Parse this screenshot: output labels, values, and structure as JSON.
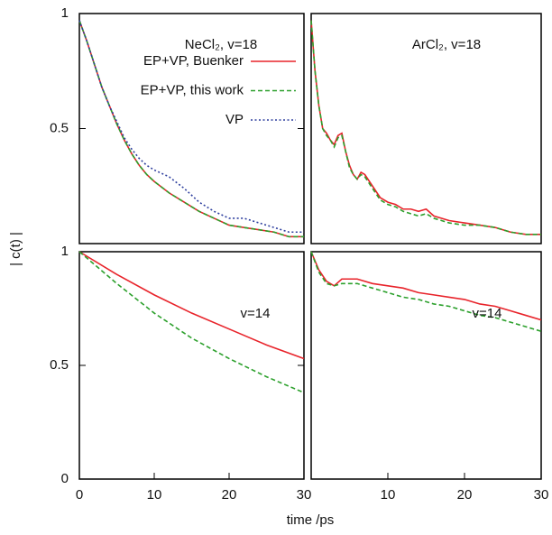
{
  "chart_data": [
    {
      "type": "line",
      "annotation": "NeCl₂,  v=18",
      "ylabel": "| c(t) |",
      "x": [
        0,
        1,
        2,
        3,
        4,
        5,
        6,
        7,
        8,
        9,
        10,
        12,
        14,
        16,
        18,
        20,
        22,
        24,
        26,
        28,
        30
      ],
      "xlim": [
        0,
        30
      ],
      "ylim": [
        0,
        1
      ],
      "yticks": [
        0.5,
        1
      ],
      "legend": "top-right",
      "series": [
        {
          "name": "EP+VP, Buenker",
          "color": "#e8232a",
          "dash": "solid",
          "values": [
            0.97,
            0.88,
            0.78,
            0.68,
            0.6,
            0.52,
            0.45,
            0.39,
            0.34,
            0.3,
            0.27,
            0.22,
            0.18,
            0.14,
            0.11,
            0.08,
            0.07,
            0.06,
            0.05,
            0.03,
            0.03
          ]
        },
        {
          "name": "EP+VP, this work",
          "color": "#2ca02c",
          "dash": "dashed",
          "values": [
            0.97,
            0.88,
            0.78,
            0.68,
            0.6,
            0.52,
            0.45,
            0.39,
            0.34,
            0.3,
            0.27,
            0.22,
            0.18,
            0.14,
            0.11,
            0.08,
            0.07,
            0.06,
            0.05,
            0.03,
            0.03
          ]
        },
        {
          "name": "VP",
          "color": "#2e3f9e",
          "dash": "dotted",
          "values": [
            0.97,
            0.88,
            0.78,
            0.68,
            0.6,
            0.53,
            0.46,
            0.41,
            0.37,
            0.34,
            0.32,
            0.29,
            0.24,
            0.18,
            0.14,
            0.11,
            0.11,
            0.09,
            0.07,
            0.05,
            0.05
          ]
        }
      ]
    },
    {
      "type": "line",
      "annotation": "ArCl₂,  v=18",
      "x": [
        0,
        0.5,
        1,
        1.5,
        2,
        2.5,
        3,
        3.5,
        4,
        4.5,
        5,
        5.5,
        6,
        6.5,
        7,
        8,
        9,
        10,
        11,
        12,
        13,
        14,
        15,
        16,
        18,
        20,
        22,
        24,
        26,
        28,
        30
      ],
      "xlim": [
        0,
        30
      ],
      "ylim": [
        0,
        1
      ],
      "series": [
        {
          "color": "#e8232a",
          "dash": "solid",
          "values": [
            0.97,
            0.75,
            0.6,
            0.5,
            0.48,
            0.45,
            0.43,
            0.47,
            0.48,
            0.4,
            0.34,
            0.3,
            0.28,
            0.31,
            0.3,
            0.25,
            0.2,
            0.18,
            0.17,
            0.15,
            0.15,
            0.14,
            0.15,
            0.12,
            0.1,
            0.09,
            0.08,
            0.07,
            0.05,
            0.04,
            0.04
          ]
        },
        {
          "color": "#2ca02c",
          "dash": "dashed",
          "values": [
            0.97,
            0.75,
            0.6,
            0.5,
            0.47,
            0.45,
            0.42,
            0.46,
            0.47,
            0.4,
            0.33,
            0.3,
            0.28,
            0.3,
            0.29,
            0.24,
            0.19,
            0.17,
            0.16,
            0.14,
            0.13,
            0.12,
            0.13,
            0.11,
            0.09,
            0.08,
            0.08,
            0.07,
            0.05,
            0.04,
            0.04
          ]
        }
      ]
    },
    {
      "type": "line",
      "annotation": "v=14",
      "xlabel": "time /ps",
      "x": [
        0,
        5,
        10,
        15,
        20,
        25,
        30
      ],
      "xlim": [
        0,
        30
      ],
      "ylim": [
        0,
        1
      ],
      "xticks": [
        0,
        10,
        20,
        30
      ],
      "yticks": [
        0,
        0.5,
        1
      ],
      "series": [
        {
          "color": "#e8232a",
          "dash": "solid",
          "values": [
            1,
            0.9,
            0.81,
            0.73,
            0.66,
            0.59,
            0.53
          ]
        },
        {
          "color": "#2ca02c",
          "dash": "dashed",
          "values": [
            1,
            0.86,
            0.73,
            0.62,
            0.53,
            0.45,
            0.38
          ]
        }
      ]
    },
    {
      "type": "line",
      "annotation": "v=14",
      "x": [
        0,
        1,
        2,
        3,
        4,
        6,
        8,
        10,
        12,
        14,
        16,
        18,
        20,
        22,
        24,
        26,
        28,
        30
      ],
      "xlim": [
        0,
        30
      ],
      "ylim": [
        0,
        1
      ],
      "xticks": [
        10,
        20,
        30
      ],
      "series": [
        {
          "color": "#e8232a",
          "dash": "solid",
          "values": [
            1,
            0.92,
            0.87,
            0.85,
            0.88,
            0.88,
            0.86,
            0.85,
            0.84,
            0.82,
            0.81,
            0.8,
            0.79,
            0.77,
            0.76,
            0.74,
            0.72,
            0.7
          ]
        },
        {
          "color": "#2ca02c",
          "dash": "dashed",
          "values": [
            1,
            0.91,
            0.86,
            0.85,
            0.86,
            0.86,
            0.84,
            0.82,
            0.8,
            0.79,
            0.77,
            0.76,
            0.74,
            0.72,
            0.71,
            0.69,
            0.67,
            0.65
          ]
        }
      ]
    }
  ]
}
